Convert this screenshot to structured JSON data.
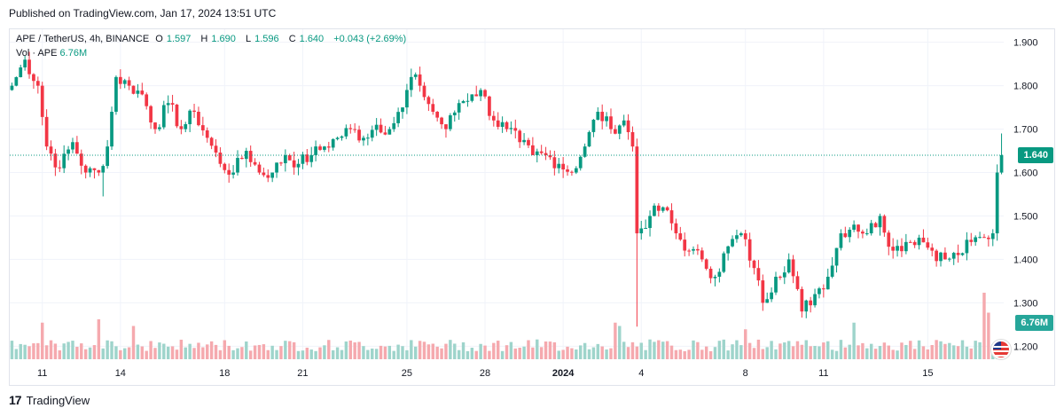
{
  "header": {
    "published": "Published on TradingView.com, Jan 17, 2024 13:51 UTC"
  },
  "legend": {
    "symbol": "APE / TetherUS, 4h, BINANCE",
    "o_label": "O",
    "o_val": "1.597",
    "h_label": "H",
    "h_val": "1.690",
    "l_label": "L",
    "l_val": "1.596",
    "c_label": "C",
    "c_val": "1.640",
    "change": "+0.043 (+2.69%)"
  },
  "vol_legend": {
    "label": "Vol · APE",
    "value": "6.76M"
  },
  "badges": {
    "price": "1.640",
    "volume": "6.76M"
  },
  "footer": {
    "brand": "TradingView",
    "logo": "17"
  },
  "colors": {
    "up": "#089981",
    "down": "#f23645",
    "up_vol": "#9ed4cb",
    "down_vol": "#f5a9ae",
    "grid": "#f0f3fa",
    "text": "#131722"
  },
  "chart_data": {
    "type": "candlestick",
    "title": "APE / TetherUS, 4h, BINANCE",
    "ylim": [
      1.17,
      1.93
    ],
    "y_ticks": [
      "1.900",
      "1.800",
      "1.700",
      "1.600",
      "1.500",
      "1.400",
      "1.300",
      "1.200"
    ],
    "x_ticks": [
      {
        "label": "11",
        "index": 7
      },
      {
        "label": "14",
        "index": 25
      },
      {
        "label": "18",
        "index": 49
      },
      {
        "label": "21",
        "index": 67
      },
      {
        "label": "25",
        "index": 91
      },
      {
        "label": "28",
        "index": 109
      },
      {
        "label": "2024",
        "index": 127
      },
      {
        "label": "4",
        "index": 145
      },
      {
        "label": "8",
        "index": 169
      },
      {
        "label": "11",
        "index": 187
      },
      {
        "label": "15",
        "index": 211
      }
    ],
    "last_close": 1.64,
    "anchors": [
      [
        0,
        1.8
      ],
      [
        3,
        1.86
      ],
      [
        6,
        1.8
      ],
      [
        8,
        1.66
      ],
      [
        11,
        1.61
      ],
      [
        14,
        1.67
      ],
      [
        17,
        1.6
      ],
      [
        20,
        1.6
      ],
      [
        22,
        1.66
      ],
      [
        24,
        1.82
      ],
      [
        27,
        1.8
      ],
      [
        30,
        1.78
      ],
      [
        33,
        1.7
      ],
      [
        36,
        1.76
      ],
      [
        39,
        1.7
      ],
      [
        42,
        1.74
      ],
      [
        45,
        1.68
      ],
      [
        48,
        1.62
      ],
      [
        51,
        1.6
      ],
      [
        54,
        1.65
      ],
      [
        57,
        1.6
      ],
      [
        60,
        1.6
      ],
      [
        63,
        1.64
      ],
      [
        66,
        1.62
      ],
      [
        69,
        1.64
      ],
      [
        72,
        1.66
      ],
      [
        75,
        1.68
      ],
      [
        78,
        1.7
      ],
      [
        81,
        1.68
      ],
      [
        84,
        1.71
      ],
      [
        87,
        1.7
      ],
      [
        90,
        1.75
      ],
      [
        92,
        1.82
      ],
      [
        94,
        1.8
      ],
      [
        97,
        1.74
      ],
      [
        100,
        1.7
      ],
      [
        103,
        1.76
      ],
      [
        106,
        1.78
      ],
      [
        108,
        1.79
      ],
      [
        111,
        1.72
      ],
      [
        114,
        1.7
      ],
      [
        117,
        1.67
      ],
      [
        120,
        1.64
      ],
      [
        123,
        1.64
      ],
      [
        126,
        1.62
      ],
      [
        129,
        1.6
      ],
      [
        132,
        1.66
      ],
      [
        135,
        1.74
      ],
      [
        138,
        1.7
      ],
      [
        141,
        1.72
      ],
      [
        143,
        1.66
      ],
      [
        144,
        1.46
      ],
      [
        147,
        1.5
      ],
      [
        150,
        1.52
      ],
      [
        153,
        1.46
      ],
      [
        156,
        1.42
      ],
      [
        159,
        1.4
      ],
      [
        162,
        1.36
      ],
      [
        165,
        1.43
      ],
      [
        168,
        1.46
      ],
      [
        171,
        1.38
      ],
      [
        173,
        1.3
      ],
      [
        176,
        1.36
      ],
      [
        179,
        1.4
      ],
      [
        182,
        1.28
      ],
      [
        185,
        1.32
      ],
      [
        188,
        1.36
      ],
      [
        191,
        1.46
      ],
      [
        194,
        1.48
      ],
      [
        197,
        1.46
      ],
      [
        200,
        1.5
      ],
      [
        203,
        1.42
      ],
      [
        206,
        1.44
      ],
      [
        209,
        1.45
      ],
      [
        212,
        1.42
      ],
      [
        215,
        1.4
      ],
      [
        218,
        1.41
      ],
      [
        221,
        1.44
      ],
      [
        224,
        1.45
      ],
      [
        226,
        1.46
      ],
      [
        227,
        1.6
      ],
      [
        228,
        1.64
      ]
    ],
    "volume_spikes": [
      {
        "index": 7,
        "value": 0.55
      },
      {
        "index": 20,
        "value": 0.6
      },
      {
        "index": 28,
        "value": 0.5
      },
      {
        "index": 139,
        "value": 0.55
      },
      {
        "index": 140,
        "value": 0.5
      },
      {
        "index": 169,
        "value": 0.45
      },
      {
        "index": 194,
        "value": 0.55
      },
      {
        "index": 224,
        "value": 1.0
      },
      {
        "index": 225,
        "value": 0.7
      }
    ]
  }
}
